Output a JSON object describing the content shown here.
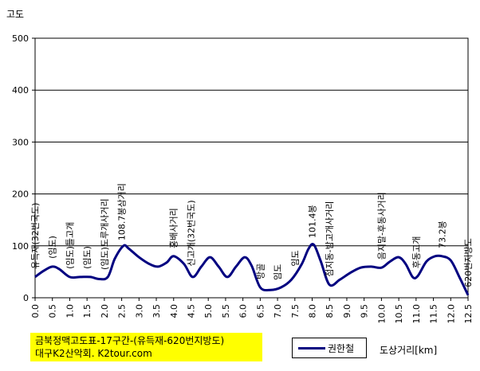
{
  "chart_data": {
    "type": "line",
    "ylabel": "고도",
    "xlabel": "도상거리[km]",
    "ylim": [
      0,
      500
    ],
    "yticks": [
      0,
      100,
      200,
      300,
      400,
      500
    ],
    "xlim": [
      0,
      12.5
    ],
    "xticks": [
      "0.0",
      "0.5",
      "1.0",
      "1.5",
      "2.0",
      "2.5",
      "3.0",
      "3.5",
      "4.0",
      "4.5",
      "5.0",
      "5.5",
      "6.0",
      "6.5",
      "7.0",
      "7.5",
      "8.0",
      "8.5",
      "9.0",
      "9.5",
      "10.0",
      "10.5",
      "11.0",
      "11.5",
      "12.0",
      "12.5"
    ],
    "grid": "horizontal",
    "legend_position": "bottom",
    "series": [
      {
        "name": "권한철",
        "color": "#000080",
        "x": [
          0.0,
          0.25,
          0.5,
          0.7,
          1.0,
          1.3,
          1.6,
          1.85,
          2.1,
          2.3,
          2.55,
          2.7,
          3.0,
          3.3,
          3.55,
          3.8,
          4.0,
          4.3,
          4.55,
          4.8,
          5.05,
          5.3,
          5.55,
          5.8,
          6.05,
          6.25,
          6.5,
          6.8,
          7.1,
          7.4,
          7.7,
          7.9,
          8.05,
          8.25,
          8.5,
          8.8,
          9.1,
          9.4,
          9.7,
          10.0,
          10.25,
          10.5,
          10.7,
          10.9,
          11.05,
          11.3,
          11.55,
          11.75,
          12.0,
          12.25,
          12.5
        ],
        "values": [
          40,
          52,
          60,
          55,
          40,
          40,
          40,
          36,
          40,
          75,
          100,
          95,
          78,
          65,
          60,
          68,
          80,
          65,
          40,
          60,
          78,
          60,
          40,
          60,
          78,
          62,
          20,
          15,
          20,
          35,
          65,
          95,
          102,
          70,
          25,
          35,
          48,
          58,
          60,
          58,
          70,
          78,
          65,
          40,
          42,
          70,
          80,
          80,
          72,
          40,
          5
        ]
      }
    ],
    "annotations": [
      {
        "x": 0.0,
        "text": "유득재(32번국도)"
      },
      {
        "x": 0.5,
        "text": "(임도)"
      },
      {
        "x": 1.0,
        "text": "(임도)틀고개"
      },
      {
        "x": 1.5,
        "text": "(임도)"
      },
      {
        "x": 2.0,
        "text": "(임도)도루개사거리"
      },
      {
        "x": 2.5,
        "text": "108.7봉삼거리"
      },
      {
        "x": 4.0,
        "text": "홍배사거리"
      },
      {
        "x": 4.5,
        "text": "신고개(32번국도)"
      },
      {
        "x": 6.5,
        "text": "방골"
      },
      {
        "x": 7.0,
        "text": "임도"
      },
      {
        "x": 7.5,
        "text": "임도"
      },
      {
        "x": 8.0,
        "text": "101.4봉"
      },
      {
        "x": 8.5,
        "text": "점지동-밤고개사거리"
      },
      {
        "x": 10.0,
        "text": "음지말-후동사거리"
      },
      {
        "x": 11.0,
        "text": "후동고개"
      },
      {
        "x": 11.75,
        "text": "73.2봉"
      },
      {
        "x": 12.5,
        "text": "620번지방도"
      }
    ]
  },
  "caption": {
    "line1": "금북정맥고도표-17구간-(유득재-620번지방도)",
    "line2": "대구K2산악회. K2tour.com",
    "background": "#ffff00"
  }
}
